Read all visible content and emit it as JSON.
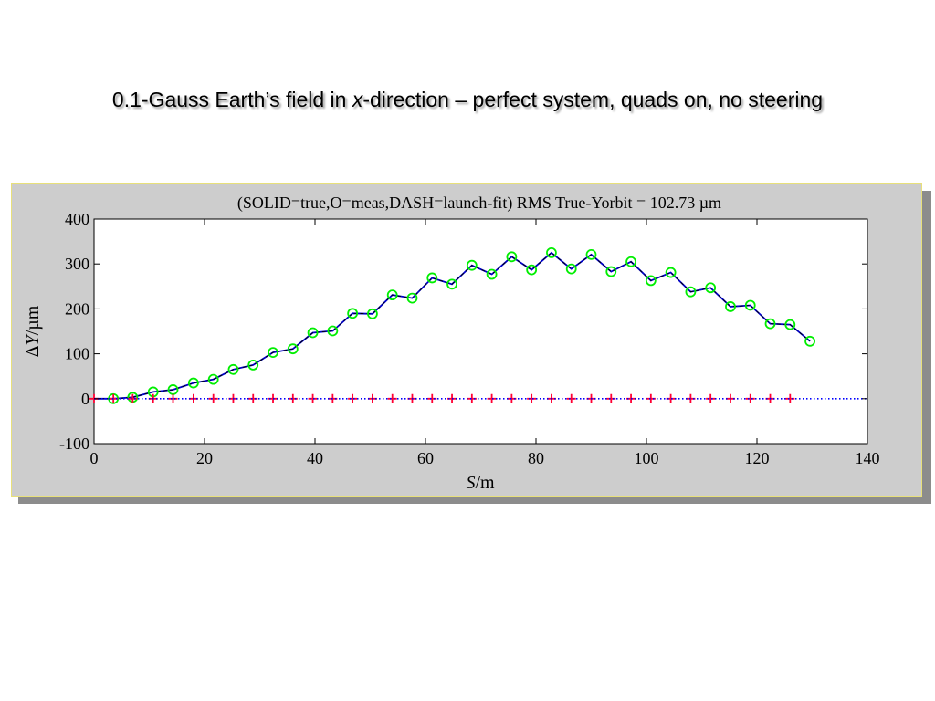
{
  "slide": {
    "title_pre": "0.1-Gauss Earth’s field in ",
    "title_italic": "x",
    "title_post": "-direction – perfect system, quads on, no steering"
  },
  "chart_data": {
    "type": "line",
    "title": "(SOLID=true,O=meas,DASH=launch-fit) RMS True-Yorbit =  102.73 µm",
    "xlabel_italic": "S",
    "xlabel_rest": "/m",
    "ylabel_prefix": "Δ",
    "ylabel_italic": "Y",
    "ylabel_rest": "/µm",
    "xlim": [
      0,
      140
    ],
    "ylim": [
      -100,
      400
    ],
    "xticks": [
      0,
      20,
      40,
      60,
      80,
      100,
      120,
      140
    ],
    "yticks": [
      -100,
      0,
      100,
      200,
      300,
      400
    ],
    "grid": false,
    "colors": {
      "true_orbit": "#0000cc",
      "measured": "#00ee00",
      "launch_fit": "#000000",
      "bpm_markers": "#ff0033",
      "zero_line": "#0000ff",
      "panel": "#cdcdcd"
    },
    "series": [
      {
        "style": "solid",
        "x": [
          0,
          3.5,
          7,
          10.7,
          14.3,
          18,
          21.6,
          25.2,
          28.8,
          32.4,
          36,
          39.6,
          43.2,
          46.8,
          50.4,
          54,
          57.6,
          61.2,
          64.8,
          68.4,
          72,
          75.6,
          79.2,
          82.8,
          86.4,
          90,
          93.6,
          97.2,
          100.8,
          104.4,
          108,
          111.6,
          115.2,
          118.8,
          122.4,
          126,
          129.6
        ],
        "y": [
          0,
          0,
          3,
          15,
          20,
          35,
          43,
          65,
          75,
          103,
          111,
          147,
          151,
          190,
          189,
          231,
          224,
          269,
          255,
          297,
          277,
          316,
          287,
          325,
          289,
          321,
          283,
          305,
          263,
          281,
          238,
          247,
          205,
          208,
          167,
          165,
          128
        ]
      },
      {
        "style": "circle",
        "x": [
          3.5,
          7,
          10.7,
          14.3,
          18,
          21.6,
          25.2,
          28.8,
          32.4,
          36,
          39.6,
          43.2,
          46.8,
          50.4,
          54,
          57.6,
          61.2,
          64.8,
          68.4,
          72,
          75.6,
          79.2,
          82.8,
          86.4,
          90,
          93.6,
          97.2,
          100.8,
          104.4,
          108,
          111.6,
          115.2,
          118.8,
          122.4,
          126,
          129.6
        ],
        "y": [
          0,
          3,
          15,
          20,
          35,
          43,
          65,
          75,
          103,
          111,
          147,
          151,
          190,
          189,
          231,
          224,
          269,
          255,
          297,
          277,
          316,
          287,
          325,
          289,
          321,
          283,
          305,
          263,
          281,
          238,
          247,
          205,
          208,
          167,
          165,
          128
        ]
      },
      {
        "style": "plus",
        "x": [
          0,
          3.5,
          7,
          10.7,
          14.3,
          18,
          21.6,
          25.2,
          28.8,
          32.4,
          36,
          39.6,
          43.2,
          46.8,
          50.4,
          54,
          57.6,
          61.2,
          64.8,
          68.4,
          72,
          75.6,
          79.2,
          82.8,
          86.4,
          90,
          93.6,
          97.2,
          100.8,
          104.4,
          108,
          111.6,
          115.2,
          118.8,
          122.4,
          126
        ],
        "y": [
          0,
          0,
          0,
          0,
          0,
          0,
          0,
          0,
          0,
          0,
          0,
          0,
          0,
          0,
          0,
          0,
          0,
          0,
          0,
          0,
          0,
          0,
          0,
          0,
          0,
          0,
          0,
          0,
          0,
          0,
          0,
          0,
          0,
          0,
          0,
          0
        ]
      },
      {
        "style": "dotted",
        "x": [
          0,
          140
        ],
        "y": [
          0,
          0
        ]
      }
    ]
  }
}
